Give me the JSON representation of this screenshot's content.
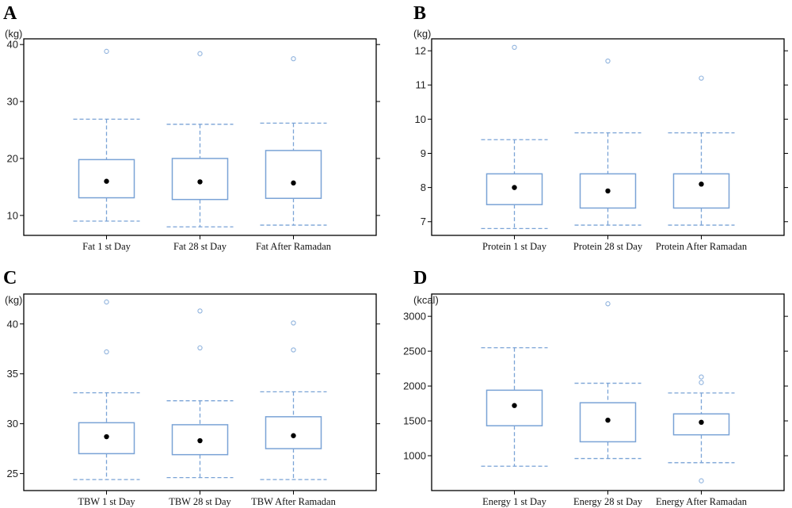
{
  "chart_data": [
    {
      "type": "box",
      "panel": "A",
      "unit": "(kg)",
      "categories": [
        "Fat 1 st Day",
        "Fat 28 st Day",
        "Fat After Ramadan"
      ],
      "yticks": [
        10,
        20,
        30,
        40
      ],
      "ylim": [
        6.5,
        41
      ],
      "boxes": [
        {
          "q1": 13.1,
          "median": 16.0,
          "q3": 19.8,
          "whisker_low": 9.0,
          "whisker_high": 26.9,
          "outliers": [
            38.8
          ]
        },
        {
          "q1": 12.8,
          "median": 15.9,
          "q3": 20.0,
          "whisker_low": 8.0,
          "whisker_high": 26.0,
          "outliers": [
            38.4
          ]
        },
        {
          "q1": 13.0,
          "median": 15.7,
          "q3": 21.4,
          "whisker_low": 8.3,
          "whisker_high": 26.2,
          "outliers": [
            37.5
          ]
        }
      ]
    },
    {
      "type": "box",
      "panel": "B",
      "unit": "(kg)",
      "categories": [
        "Protein 1 st Day",
        "Protein 28 st Day",
        "Protein After Ramadan"
      ],
      "yticks": [
        7,
        8,
        9,
        10,
        11,
        12
      ],
      "ylim": [
        6.6,
        12.35
      ],
      "boxes": [
        {
          "q1": 7.5,
          "median": 8.0,
          "q3": 8.4,
          "whisker_low": 6.8,
          "whisker_high": 9.4,
          "outliers": [
            12.1
          ]
        },
        {
          "q1": 7.4,
          "median": 7.9,
          "q3": 8.4,
          "whisker_low": 6.9,
          "whisker_high": 9.6,
          "outliers": [
            11.7
          ]
        },
        {
          "q1": 7.4,
          "median": 8.1,
          "q3": 8.4,
          "whisker_low": 6.9,
          "whisker_high": 9.6,
          "outliers": [
            11.2
          ]
        }
      ]
    },
    {
      "type": "box",
      "panel": "C",
      "unit": "(kg)",
      "categories": [
        "TBW 1 st Day",
        "TBW 28 st Day",
        "TBW After Ramadan"
      ],
      "yticks": [
        25,
        30,
        35,
        40
      ],
      "ylim": [
        23.3,
        43.0
      ],
      "boxes": [
        {
          "q1": 27.0,
          "median": 28.7,
          "q3": 30.1,
          "whisker_low": 24.4,
          "whisker_high": 33.1,
          "outliers": [
            37.2,
            42.2
          ]
        },
        {
          "q1": 26.9,
          "median": 28.3,
          "q3": 29.9,
          "whisker_low": 24.6,
          "whisker_high": 32.3,
          "outliers": [
            37.6,
            41.3
          ]
        },
        {
          "q1": 27.5,
          "median": 28.8,
          "q3": 30.7,
          "whisker_low": 24.4,
          "whisker_high": 33.2,
          "outliers": [
            37.4,
            40.1
          ]
        }
      ]
    },
    {
      "type": "box",
      "panel": "D",
      "unit": "(kcal)",
      "categories": [
        "Energy 1 st Day",
        "Energy 28 st Day",
        "Energy After Ramadan"
      ],
      "yticks": [
        1000,
        1500,
        2000,
        2500,
        3000
      ],
      "ylim": [
        500,
        3320
      ],
      "boxes": [
        {
          "q1": 1430,
          "median": 1720,
          "q3": 1940,
          "whisker_low": 850,
          "whisker_high": 2550,
          "outliers": []
        },
        {
          "q1": 1200,
          "median": 1510,
          "q3": 1760,
          "whisker_low": 960,
          "whisker_high": 2040,
          "outliers": [
            3180
          ]
        },
        {
          "q1": 1300,
          "median": 1480,
          "q3": 1600,
          "whisker_low": 900,
          "whisker_high": 1900,
          "outliers": [
            640,
            2050,
            2130
          ]
        }
      ]
    }
  ]
}
